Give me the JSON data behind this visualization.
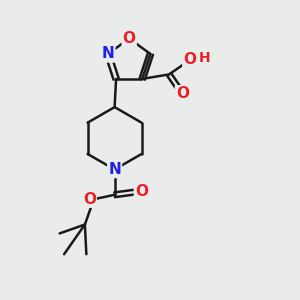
{
  "bg_color": "#eaecec",
  "bond_color": "#1a1a1a",
  "bond_width": 1.8,
  "atom_colors": {
    "O": "#e8202a",
    "N": "#2020e8",
    "C": "#1a1a1a",
    "H": "#5a9090"
  }
}
